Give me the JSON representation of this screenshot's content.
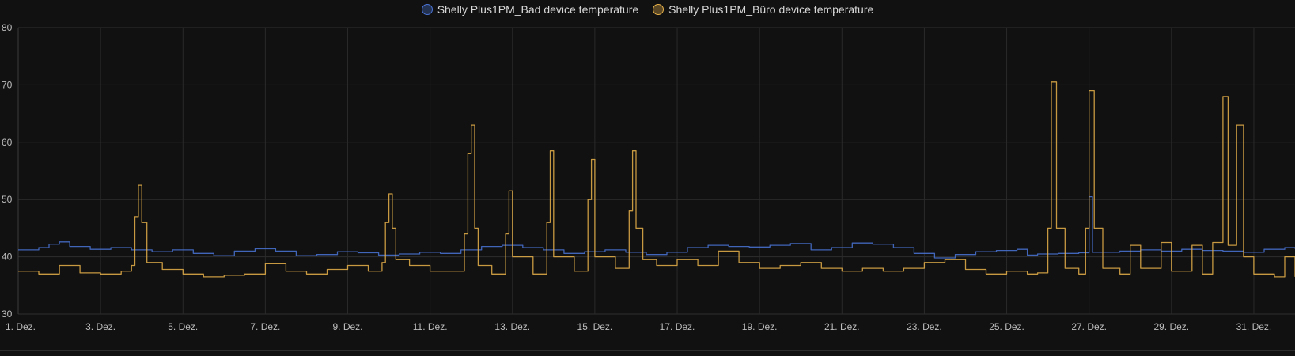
{
  "chart_data": {
    "type": "line",
    "title": "",
    "xlabel": "",
    "ylabel": "",
    "ylim": [
      30,
      80
    ],
    "yticks": [
      "30",
      "40",
      "50",
      "60",
      "70",
      "80"
    ],
    "xlim": [
      "2023-12-01",
      "2024-01-01"
    ],
    "xticks": [
      {
        "date": "2023-12-01",
        "label": "1. Dez."
      },
      {
        "date": "2023-12-03",
        "label": "3. Dez."
      },
      {
        "date": "2023-12-05",
        "label": "5. Dez."
      },
      {
        "date": "2023-12-07",
        "label": "7. Dez."
      },
      {
        "date": "2023-12-09",
        "label": "9. Dez."
      },
      {
        "date": "2023-12-11",
        "label": "11. Dez."
      },
      {
        "date": "2023-12-13",
        "label": "13. Dez."
      },
      {
        "date": "2023-12-15",
        "label": "15. Dez."
      },
      {
        "date": "2023-12-17",
        "label": "17. Dez."
      },
      {
        "date": "2023-12-19",
        "label": "19. Dez."
      },
      {
        "date": "2023-12-21",
        "label": "21. Dez."
      },
      {
        "date": "2023-12-23",
        "label": "23. Dez."
      },
      {
        "date": "2023-12-25",
        "label": "25. Dez."
      },
      {
        "date": "2023-12-27",
        "label": "27. Dez."
      },
      {
        "date": "2023-12-29",
        "label": "29. Dez."
      },
      {
        "date": "2023-12-31",
        "label": "31. Dez."
      }
    ],
    "grid": true,
    "legend_position": "top-center",
    "series": [
      {
        "name": "Shelly Plus1PM_Bad device temperature",
        "color": "#4a74d6",
        "points": [
          [
            "2023-12-01 00:00",
            41.2
          ],
          [
            "2023-12-01 12:00",
            41.6
          ],
          [
            "2023-12-01 18:00",
            42.2
          ],
          [
            "2023-12-02 00:00",
            42.6
          ],
          [
            "2023-12-02 06:00",
            41.8
          ],
          [
            "2023-12-02 18:00",
            41.3
          ],
          [
            "2023-12-03 06:00",
            41.6
          ],
          [
            "2023-12-03 18:00",
            41.2
          ],
          [
            "2023-12-04 06:00",
            40.9
          ],
          [
            "2023-12-04 18:00",
            41.2
          ],
          [
            "2023-12-05 06:00",
            40.6
          ],
          [
            "2023-12-05 18:00",
            40.2
          ],
          [
            "2023-12-06 06:00",
            41.0
          ],
          [
            "2023-12-06 18:00",
            41.4
          ],
          [
            "2023-12-07 06:00",
            41.0
          ],
          [
            "2023-12-07 18:00",
            40.2
          ],
          [
            "2023-12-08 06:00",
            40.4
          ],
          [
            "2023-12-08 18:00",
            40.9
          ],
          [
            "2023-12-09 06:00",
            40.7
          ],
          [
            "2023-12-09 18:00",
            40.3
          ],
          [
            "2023-12-10 06:00",
            40.5
          ],
          [
            "2023-12-10 18:00",
            40.8
          ],
          [
            "2023-12-11 06:00",
            40.6
          ],
          [
            "2023-12-11 18:00",
            41.2
          ],
          [
            "2023-12-12 06:00",
            41.8
          ],
          [
            "2023-12-12 18:00",
            42.0
          ],
          [
            "2023-12-13 06:00",
            41.6
          ],
          [
            "2023-12-13 18:00",
            41.2
          ],
          [
            "2023-12-14 06:00",
            40.6
          ],
          [
            "2023-12-14 18:00",
            40.9
          ],
          [
            "2023-12-15 06:00",
            41.2
          ],
          [
            "2023-12-15 18:00",
            40.8
          ],
          [
            "2023-12-16 06:00",
            40.4
          ],
          [
            "2023-12-16 18:00",
            40.8
          ],
          [
            "2023-12-17 06:00",
            41.6
          ],
          [
            "2023-12-17 18:00",
            42.0
          ],
          [
            "2023-12-18 06:00",
            41.8
          ],
          [
            "2023-12-18 18:00",
            41.7
          ],
          [
            "2023-12-19 06:00",
            42.0
          ],
          [
            "2023-12-19 18:00",
            42.3
          ],
          [
            "2023-12-20 06:00",
            41.2
          ],
          [
            "2023-12-20 18:00",
            41.6
          ],
          [
            "2023-12-21 06:00",
            42.4
          ],
          [
            "2023-12-21 18:00",
            42.2
          ],
          [
            "2023-12-22 06:00",
            41.6
          ],
          [
            "2023-12-22 18:00",
            40.6
          ],
          [
            "2023-12-23 06:00",
            39.8
          ],
          [
            "2023-12-23 18:00",
            40.4
          ],
          [
            "2023-12-24 06:00",
            40.9
          ],
          [
            "2023-12-24 18:00",
            41.1
          ],
          [
            "2023-12-25 06:00",
            41.3
          ],
          [
            "2023-12-25 12:00",
            40.3
          ],
          [
            "2023-12-25 18:00",
            40.5
          ],
          [
            "2023-12-26 06:00",
            40.6
          ],
          [
            "2023-12-26 18:00",
            40.7
          ],
          [
            "2023-12-27 00:00",
            50.5
          ],
          [
            "2023-12-27 02:00",
            40.8
          ],
          [
            "2023-12-27 18:00",
            41.0
          ],
          [
            "2023-12-28 06:00",
            41.2
          ],
          [
            "2023-12-28 18:00",
            41.0
          ],
          [
            "2023-12-29 06:00",
            41.3
          ],
          [
            "2023-12-29 18:00",
            41.1
          ],
          [
            "2023-12-30 06:00",
            41.0
          ],
          [
            "2023-12-30 18:00",
            40.8
          ],
          [
            "2023-12-31 06:00",
            41.3
          ],
          [
            "2023-12-31 18:00",
            41.6
          ],
          [
            "2024-01-01 00:00",
            41.4
          ]
        ]
      },
      {
        "name": "Shelly Plus1PM_Büro device temperature",
        "color": "#e8b24a",
        "points": [
          [
            "2023-12-01 00:00",
            37.5
          ],
          [
            "2023-12-01 12:00",
            37.0
          ],
          [
            "2023-12-02 00:00",
            38.5
          ],
          [
            "2023-12-02 12:00",
            37.2
          ],
          [
            "2023-12-03 00:00",
            37.0
          ],
          [
            "2023-12-03 12:00",
            37.5
          ],
          [
            "2023-12-03 18:00",
            38.5
          ],
          [
            "2023-12-03 20:00",
            47.0
          ],
          [
            "2023-12-03 22:00",
            52.5
          ],
          [
            "2023-12-04 00:00",
            46.0
          ],
          [
            "2023-12-04 03:00",
            39.0
          ],
          [
            "2023-12-04 12:00",
            37.8
          ],
          [
            "2023-12-05 00:00",
            37.0
          ],
          [
            "2023-12-05 12:00",
            36.5
          ],
          [
            "2023-12-06 00:00",
            36.8
          ],
          [
            "2023-12-06 12:00",
            37.0
          ],
          [
            "2023-12-07 00:00",
            38.8
          ],
          [
            "2023-12-07 12:00",
            37.5
          ],
          [
            "2023-12-08 00:00",
            37.0
          ],
          [
            "2023-12-08 12:00",
            37.8
          ],
          [
            "2023-12-09 00:00",
            38.5
          ],
          [
            "2023-12-09 12:00",
            37.5
          ],
          [
            "2023-12-09 20:00",
            39.0
          ],
          [
            "2023-12-09 22:00",
            46.0
          ],
          [
            "2023-12-10 00:00",
            51.0
          ],
          [
            "2023-12-10 02:00",
            45.0
          ],
          [
            "2023-12-10 04:00",
            39.5
          ],
          [
            "2023-12-10 12:00",
            38.5
          ],
          [
            "2023-12-11 00:00",
            37.5
          ],
          [
            "2023-12-11 12:00",
            37.5
          ],
          [
            "2023-12-11 20:00",
            44.0
          ],
          [
            "2023-12-11 22:00",
            58.0
          ],
          [
            "2023-12-12 00:00",
            63.0
          ],
          [
            "2023-12-12 02:00",
            45.0
          ],
          [
            "2023-12-12 04:00",
            38.5
          ],
          [
            "2023-12-12 12:00",
            37.0
          ],
          [
            "2023-12-12 20:00",
            44.0
          ],
          [
            "2023-12-12 22:00",
            51.5
          ],
          [
            "2023-12-13 00:00",
            40.0
          ],
          [
            "2023-12-13 12:00",
            37.0
          ],
          [
            "2023-12-13 20:00",
            46.0
          ],
          [
            "2023-12-13 22:00",
            58.5
          ],
          [
            "2023-12-14 00:00",
            40.0
          ],
          [
            "2023-12-14 12:00",
            37.5
          ],
          [
            "2023-12-14 20:00",
            50.0
          ],
          [
            "2023-12-14 22:00",
            57.0
          ],
          [
            "2023-12-15 00:00",
            40.0
          ],
          [
            "2023-12-15 12:00",
            38.0
          ],
          [
            "2023-12-15 20:00",
            48.0
          ],
          [
            "2023-12-15 22:00",
            58.5
          ],
          [
            "2023-12-16 00:00",
            45.0
          ],
          [
            "2023-12-16 04:00",
            39.5
          ],
          [
            "2023-12-16 12:00",
            38.5
          ],
          [
            "2023-12-17 00:00",
            39.5
          ],
          [
            "2023-12-17 12:00",
            38.5
          ],
          [
            "2023-12-18 00:00",
            41.0
          ],
          [
            "2023-12-18 12:00",
            39.0
          ],
          [
            "2023-12-19 00:00",
            38.0
          ],
          [
            "2023-12-19 12:00",
            38.5
          ],
          [
            "2023-12-20 00:00",
            39.0
          ],
          [
            "2023-12-20 12:00",
            38.0
          ],
          [
            "2023-12-21 00:00",
            37.5
          ],
          [
            "2023-12-21 12:00",
            38.0
          ],
          [
            "2023-12-22 00:00",
            37.5
          ],
          [
            "2023-12-22 12:00",
            38.0
          ],
          [
            "2023-12-23 00:00",
            39.0
          ],
          [
            "2023-12-23 12:00",
            39.5
          ],
          [
            "2023-12-24 00:00",
            37.8
          ],
          [
            "2023-12-24 12:00",
            37.0
          ],
          [
            "2023-12-25 00:00",
            37.5
          ],
          [
            "2023-12-25 12:00",
            37.0
          ],
          [
            "2023-12-25 18:00",
            37.2
          ],
          [
            "2023-12-26 00:00",
            45.0
          ],
          [
            "2023-12-26 02:00",
            70.5
          ],
          [
            "2023-12-26 05:00",
            45.0
          ],
          [
            "2023-12-26 10:00",
            38.0
          ],
          [
            "2023-12-26 18:00",
            37.0
          ],
          [
            "2023-12-26 22:00",
            45.0
          ],
          [
            "2023-12-27 00:00",
            69.0
          ],
          [
            "2023-12-27 03:00",
            45.0
          ],
          [
            "2023-12-27 08:00",
            38.0
          ],
          [
            "2023-12-27 18:00",
            37.0
          ],
          [
            "2023-12-28 00:00",
            42.0
          ],
          [
            "2023-12-28 06:00",
            38.0
          ],
          [
            "2023-12-28 18:00",
            42.5
          ],
          [
            "2023-12-29 00:00",
            37.5
          ],
          [
            "2023-12-29 12:00",
            42.0
          ],
          [
            "2023-12-29 18:00",
            37.0
          ],
          [
            "2023-12-30 00:00",
            42.5
          ],
          [
            "2023-12-30 06:00",
            68.0
          ],
          [
            "2023-12-30 09:00",
            42.0
          ],
          [
            "2023-12-30 14:00",
            63.0
          ],
          [
            "2023-12-30 18:00",
            40.0
          ],
          [
            "2023-12-31 00:00",
            37.0
          ],
          [
            "2023-12-31 12:00",
            36.5
          ],
          [
            "2023-12-31 18:00",
            40.0
          ],
          [
            "2024-01-01 00:00",
            36.5
          ]
        ]
      }
    ]
  }
}
